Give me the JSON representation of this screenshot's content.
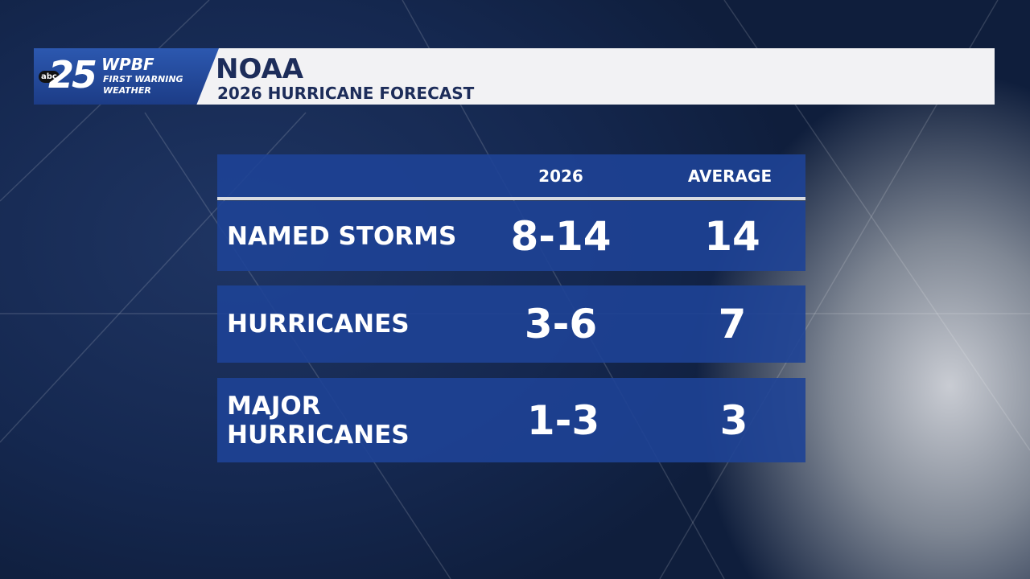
{
  "header": {
    "logo": {
      "network": "abc",
      "channel": "25",
      "station": "WPBF",
      "tagline": [
        "FIRST WARNING",
        "WEATHER"
      ]
    },
    "title": "NOAA",
    "subtitle": "2026 HURRICANE FORECAST"
  },
  "table": {
    "columns": [
      "2026",
      "AVERAGE"
    ],
    "rows": [
      [
        "NAMED STORMS",
        "8-14",
        "14"
      ],
      [
        "HURRICANES",
        "3-6",
        "7"
      ],
      [
        "MAJOR HURRICANES",
        "1-3",
        "3"
      ]
    ]
  }
}
